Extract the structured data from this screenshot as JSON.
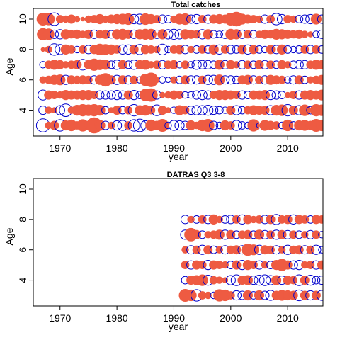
{
  "figure": {
    "background": "#ffffff"
  },
  "colors": {
    "positive": "#EE5B42",
    "negative": "#0000CC"
  },
  "chart_data": [
    {
      "type": "scatter",
      "subtype": "bubble-residuals",
      "title": "Total catches",
      "xlabel": "year",
      "ylabel": "Age",
      "xlim": [
        1965.3,
        2016.2
      ],
      "ylim": [
        2.3,
        10.7
      ],
      "x_ticks": [
        1970,
        1980,
        1990,
        2000,
        2010
      ],
      "y_ticks": [
        4,
        6,
        8,
        10
      ],
      "grid": false,
      "years": [
        1967,
        2016
      ],
      "ages": [
        3,
        10
      ],
      "residuals": {
        "3": [
          -1.2,
          0.3,
          0.5,
          -0.9,
          0.6,
          0.8,
          0.4,
          0.9,
          0.5,
          1.6,
          0.7,
          -0.5,
          0.3,
          -0.6,
          -0.7,
          0.4,
          -0.9,
          -1.1,
          -0.6,
          0.8,
          0.5,
          1.0,
          -0.3,
          -0.7,
          -0.6,
          -0.5,
          0.6,
          0.3,
          0.8,
          1.0,
          -0.5,
          -0.3,
          0.6,
          0.4,
          -0.7,
          -0.4,
          -0.3,
          0.9,
          -0.2,
          0.7,
          0.5,
          0.4,
          -0.3,
          0.8,
          -0.4,
          0.6,
          0.7,
          0.5,
          1.0,
          0.8
        ],
        "4": [
          -0.5,
          0.3,
          0.2,
          -0.6,
          -1.1,
          0.3,
          0.7,
          0.9,
          0.8,
          0.9,
          0.7,
          -0.4,
          0.2,
          0.5,
          -0.4,
          0.4,
          -0.9,
          0.6,
          0.7,
          0.4,
          -0.8,
          0.5,
          0.2,
          -0.3,
          0.6,
          0.4,
          -0.5,
          -0.6,
          -0.6,
          -0.7,
          -0.5,
          -0.4,
          -0.3,
          0.5,
          -0.6,
          -0.4,
          0.4,
          0.6,
          0.5,
          0.5,
          -0.6,
          0.7,
          0.8,
          -0.9,
          0.5,
          -0.6,
          0.8,
          -0.4,
          0.9,
          0.8
        ],
        "5": [
          -0.7,
          0.5,
          0.4,
          0.3,
          0.6,
          0.5,
          0.5,
          0.6,
          0.6,
          0.4,
          -0.5,
          -0.5,
          -0.5,
          -0.6,
          -0.5,
          0.5,
          -0.6,
          -0.4,
          0.9,
          1.1,
          -0.5,
          0.2,
          0.3,
          0.5,
          0.4,
          -0.3,
          -0.3,
          -0.5,
          -0.6,
          -0.5,
          0.4,
          0.6,
          0.6,
          0.5,
          0.4,
          -0.5,
          -0.4,
          0.5,
          0.5,
          0.6,
          -0.6,
          -0.5,
          -0.4,
          0.2,
          0.4,
          -0.5,
          0.5,
          0.6,
          0.5,
          0.7
        ],
        "6": [
          0.3,
          0.4,
          0.6,
          0.7,
          -0.6,
          0.5,
          0.4,
          0.5,
          0.4,
          -0.5,
          0.6,
          1.1,
          0.5,
          -0.6,
          0.5,
          -0.5,
          0.4,
          -0.3,
          0.9,
          1.3,
          0.2,
          -0.3,
          -0.2,
          0.3,
          -0.4,
          0.5,
          -0.5,
          -0.5,
          0.4,
          -0.6,
          -0.6,
          0.7,
          -0.5,
          -0.5,
          -0.4,
          0.5,
          0.6,
          -0.5,
          0.4,
          -0.5,
          0.6,
          0.5,
          0.4,
          -0.3,
          -0.5,
          0.5,
          -0.4,
          0.3,
          0.4,
          0.6
        ],
        "7": [
          -0.3,
          0.4,
          0.6,
          0.5,
          0.3,
          0.4,
          0.5,
          -0.8,
          0.5,
          0.9,
          0.7,
          0.6,
          -0.4,
          -0.6,
          0.5,
          -0.4,
          -0.6,
          0.5,
          0.6,
          0.3,
          0.4,
          -0.5,
          0.4,
          0.5,
          -0.3,
          0.4,
          -0.3,
          -0.6,
          -0.5,
          -0.5,
          -0.4,
          0.6,
          -0.5,
          0.5,
          0.3,
          -0.5,
          0.4,
          -0.4,
          0.5,
          -0.5,
          0.4,
          -0.4,
          0.5,
          0.3,
          -0.4,
          -0.5,
          -0.5,
          0.4,
          0.6,
          0.5
        ],
        "8": [
          0.1,
          0.3,
          -0.9,
          -0.7,
          0.6,
          0.4,
          -0.3,
          0.4,
          -0.5,
          0.5,
          0.8,
          0.7,
          0.6,
          0.4,
          -0.6,
          -0.6,
          0.5,
          -0.7,
          0.5,
          0.4,
          0.3,
          -0.8,
          -0.3,
          0.4,
          0.5,
          -0.5,
          0.3,
          -0.4,
          0.4,
          -0.4,
          0.6,
          -0.6,
          0.4,
          -0.5,
          -0.4,
          0.5,
          -0.6,
          0.5,
          -0.4,
          -0.3,
          0.5,
          -0.5,
          0.6,
          -0.4,
          -0.3,
          -0.4,
          0.4,
          -0.5,
          0.4,
          -0.4
        ],
        "9": [
          0.9,
          0.8,
          -0.5,
          -0.6,
          0.6,
          0.4,
          0.5,
          0.3,
          0.5,
          -0.5,
          0.4,
          0.5,
          -0.4,
          0.6,
          0.7,
          0.5,
          -0.5,
          0.6,
          0.7,
          0.7,
          -0.5,
          0.6,
          -0.6,
          -0.7,
          -0.6,
          0.6,
          0.5,
          0.4,
          -0.6,
          0.6,
          -0.4,
          -0.3,
          -0.5,
          0.7,
          0.6,
          -0.5,
          0.4,
          -0.4,
          0.3,
          0.5,
          0.4,
          0.7,
          0.6,
          0.5,
          0.4,
          0.5,
          0.3,
          0.2,
          -0.3,
          -0.5
        ],
        "10": [
          1.0,
          0.9,
          -1.1,
          0.4,
          0.3,
          0.5,
          0.2,
          0.1,
          0.3,
          0.4,
          0.6,
          0.3,
          0.5,
          0.6,
          0.7,
          0.8,
          -0.6,
          -0.7,
          0.8,
          0.6,
          0.4,
          -0.5,
          -0.4,
          0.3,
          0.7,
          0.8,
          -0.5,
          -0.6,
          0.4,
          -0.5,
          0.5,
          0.6,
          0.5,
          1.0,
          1.3,
          0.7,
          0.5,
          0.4,
          0.3,
          -0.5,
          0.4,
          -0.9,
          -0.6,
          0.4,
          0.3,
          -0.4,
          -0.5,
          -0.6,
          0.7,
          -0.5
        ]
      }
    },
    {
      "type": "scatter",
      "subtype": "bubble-residuals",
      "title": "DATRAS Q3 3-8",
      "xlabel": "year",
      "ylabel": "Age",
      "xlim": [
        1965.3,
        2016.2
      ],
      "ylim": [
        2.3,
        10.7
      ],
      "x_ticks": [
        1970,
        1980,
        1990,
        2000,
        2010
      ],
      "y_ticks": [
        4,
        6,
        8,
        10
      ],
      "grid": false,
      "years": [
        1992,
        2016
      ],
      "ages": [
        3,
        8
      ],
      "residuals": {
        "3": [
          1.0,
          0.8,
          -0.9,
          0.4,
          0.3,
          -0.3,
          0.9,
          0.8,
          0.4,
          -0.6,
          -0.5,
          0.6,
          -0.4,
          0.6,
          -0.5,
          -0.7,
          0.5,
          0.7,
          0.6,
          0.5,
          -0.8,
          0.5,
          -0.6,
          0.5,
          -0.7
        ],
        "4": [
          -0.4,
          0.5,
          0.6,
          0.8,
          -0.7,
          0.4,
          0.3,
          0.2,
          -0.6,
          -0.8,
          0.5,
          0.6,
          -0.5,
          -0.7,
          -0.8,
          -0.6,
          0.6,
          -0.5,
          0.5,
          0.4,
          -0.8,
          0.5,
          -0.7,
          -0.4,
          -0.5
        ],
        "5": [
          0.4,
          -0.5,
          0.5,
          0.4,
          -0.6,
          0.5,
          0.4,
          0.3,
          -0.4,
          0.5,
          -0.6,
          0.6,
          0.4,
          -0.5,
          0.3,
          -0.4,
          0.6,
          0.9,
          0.5,
          -0.5,
          -0.6,
          0.3,
          0.4,
          -0.5,
          0.5
        ],
        "6": [
          0.3,
          -0.5,
          0.4,
          -0.6,
          0.5,
          -0.4,
          0.3,
          -0.5,
          0.4,
          0.5,
          -0.5,
          0.9,
          0.7,
          -0.6,
          0.5,
          0.4,
          -0.5,
          0.3,
          -0.6,
          0.4,
          0.5,
          -0.5,
          0.4,
          -0.6,
          -0.3
        ],
        "7": [
          -0.6,
          1.1,
          0.5,
          -0.4,
          0.3,
          0.4,
          0.6,
          -0.6,
          0.5,
          -0.4,
          0.4,
          0.5,
          -0.4,
          0.6,
          -0.5,
          0.4,
          -0.6,
          0.5,
          -0.5,
          0.4,
          -0.4,
          0.3,
          -0.5,
          0.4,
          -0.3
        ],
        "8": [
          -0.5,
          0.3,
          -0.4,
          0.4,
          -0.5,
          0.6,
          0.3,
          -0.4,
          -0.5,
          0.4,
          -0.6,
          0.5,
          0.3,
          0.4,
          -0.5,
          0.5,
          -0.7,
          0.4,
          0.5,
          -0.6,
          0.5,
          0.4,
          -0.4,
          0.5,
          0.4
        ]
      }
    }
  ]
}
